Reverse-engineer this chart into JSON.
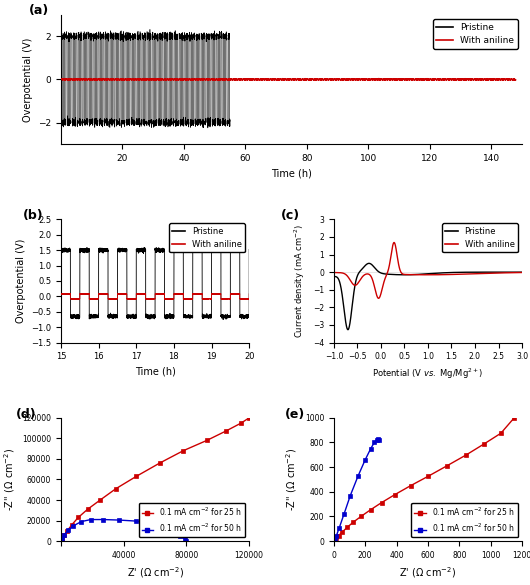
{
  "panel_labels": [
    "(a)",
    "(b)",
    "(c)",
    "(d)",
    "(e)"
  ],
  "fig_bg": "#ffffff",
  "panel_a": {
    "xlim": [
      0,
      150
    ],
    "ylim": [
      -3,
      3
    ],
    "xticks": [
      20,
      40,
      60,
      80,
      100,
      120,
      140
    ],
    "yticks": [
      -2,
      0,
      2
    ],
    "xlabel": "Time (h)",
    "ylabel": "Overpotential (V)",
    "pristine_color": "#000000",
    "aniline_color": "#cc0000"
  },
  "panel_b": {
    "xlim": [
      15,
      20
    ],
    "ylim": [
      -1.5,
      2.5
    ],
    "xticks": [
      15,
      16,
      17,
      18,
      19,
      20
    ],
    "yticks": [
      -1.5,
      -1.0,
      -0.5,
      0.0,
      0.5,
      1.0,
      1.5,
      2.0,
      2.5
    ],
    "xlabel": "Time (h)",
    "ylabel": "Overpotential (V)",
    "pristine_color": "#000000",
    "aniline_color": "#cc0000"
  },
  "panel_c": {
    "xlim": [
      -1.0,
      3.0
    ],
    "ylim": [
      -4,
      3
    ],
    "xticks": [
      -1.0,
      -0.5,
      0.0,
      0.5,
      1.0,
      1.5,
      2.0,
      2.5,
      3.0
    ],
    "yticks": [
      -4,
      -3,
      -2,
      -1,
      0,
      1,
      2,
      3
    ],
    "xlabel": "Potential (V vs. Mg/Mg2+)",
    "ylabel": "Current density (mA cm-2)",
    "pristine_color": "#000000",
    "aniline_color": "#cc0000"
  },
  "panel_d": {
    "xlim": [
      0,
      120000
    ],
    "ylim": [
      0,
      120000
    ],
    "xticks": [
      0,
      40000,
      80000,
      120000
    ],
    "yticks": [
      0,
      20000,
      40000,
      60000,
      80000,
      100000,
      120000
    ],
    "xlabel": "Z' (Ω cm-2)",
    "ylabel": "-Z'' (Ω cm-2)",
    "red_color": "#cc0000",
    "blue_color": "#0000cc"
  },
  "panel_e": {
    "xlim": [
      0,
      1200
    ],
    "ylim": [
      0,
      1000
    ],
    "xticks": [
      0,
      200,
      400,
      600,
      800,
      1000,
      1200
    ],
    "yticks": [
      0,
      200,
      400,
      600,
      800,
      1000
    ],
    "xlabel": "Z' (Ω cm-2)",
    "ylabel": "-Z'' (Ω cm-2)",
    "red_color": "#cc0000",
    "blue_color": "#0000cc"
  }
}
